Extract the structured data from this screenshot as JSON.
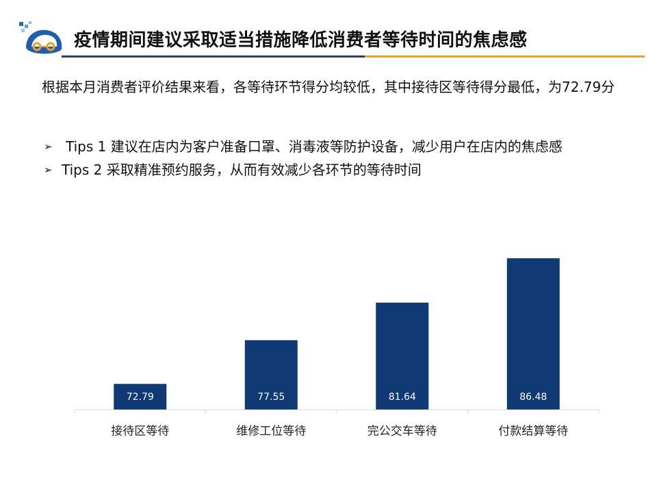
{
  "header": {
    "title": "疫情期间建议采取适当措施降低消费者等待时间的焦虑感"
  },
  "summary": "根据本月消费者评价结果来看，各等待环节得分均较低，其中接待区等待得分最低，为72.79分",
  "tips": [
    {
      "bullet": "➢",
      "text": "Tips 1  建议在店内为客户准备口罩、消毒液等防护设备，减少用户在店内的焦虑感"
    },
    {
      "bullet": "➢",
      "text": "Tips 2  采取精准预约服务，从而有效减少各环节的等待时间"
    }
  ],
  "colors": {
    "bar": "#0f3a73",
    "title_line_left": "#1f3f82",
    "title_line_right": "#f0a21f"
  },
  "logo": {
    "icon": "car-logo-icon"
  },
  "chart_data": {
    "type": "bar",
    "categories": [
      "接待区等待",
      "维修工位等待",
      "完公交车等待",
      "付款结算等待"
    ],
    "values": [
      72.79,
      77.55,
      81.64,
      86.48
    ],
    "title": "",
    "xlabel": "",
    "ylabel": "",
    "ylim": [
      70,
      90
    ],
    "grid": false,
    "legend": "none",
    "data_labels": "inside-bottom"
  }
}
